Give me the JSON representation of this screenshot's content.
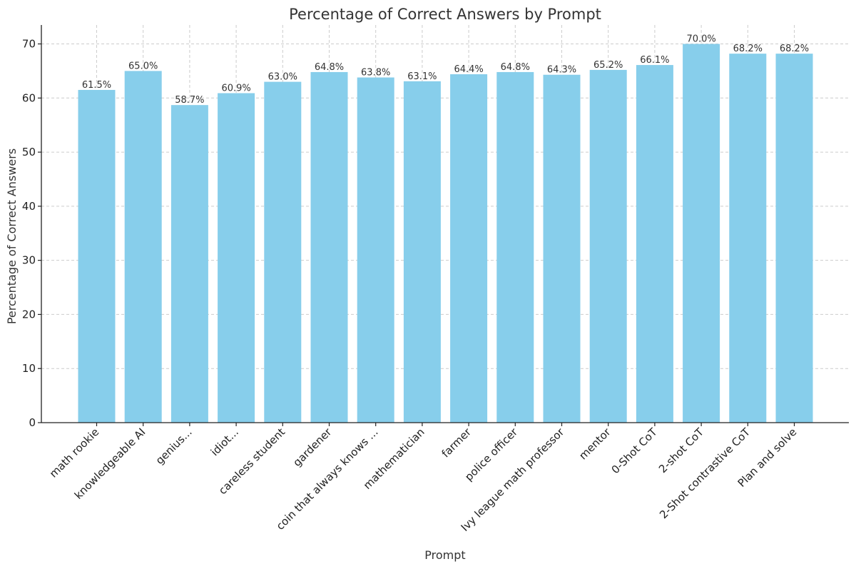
{
  "chart_data": {
    "type": "bar",
    "title": "Percentage of Correct Answers by Prompt",
    "xlabel": "Prompt",
    "ylabel": "Percentage of Correct Answers",
    "categories": [
      "math rookie",
      "knowledgeable AI",
      "genius...",
      "idiot...",
      "careless student",
      "gardener",
      "coin that always knows ...",
      "mathematician",
      "farmer",
      "police officer",
      "Ivy league math professor",
      "mentor",
      "0-Shot CoT",
      "2-shot CoT",
      "2-Shot contrastive CoT",
      "Plan and solve"
    ],
    "values": [
      61.5,
      65.0,
      58.7,
      60.9,
      63.0,
      64.8,
      63.8,
      63.1,
      64.4,
      64.8,
      64.3,
      65.2,
      66.1,
      70.0,
      68.2,
      68.2
    ],
    "data_labels": [
      "61.5%",
      "65.0%",
      "58.7%",
      "60.9%",
      "63.0%",
      "64.8%",
      "63.8%",
      "63.1%",
      "64.4%",
      "64.8%",
      "64.3%",
      "65.2%",
      "66.1%",
      "70.0%",
      "68.2%",
      "68.2%"
    ],
    "yticks": [
      0,
      10,
      20,
      30,
      40,
      50,
      60,
      70
    ],
    "ylim": [
      0,
      73.5
    ],
    "grid": true,
    "bar_color": "#87ceeb"
  }
}
